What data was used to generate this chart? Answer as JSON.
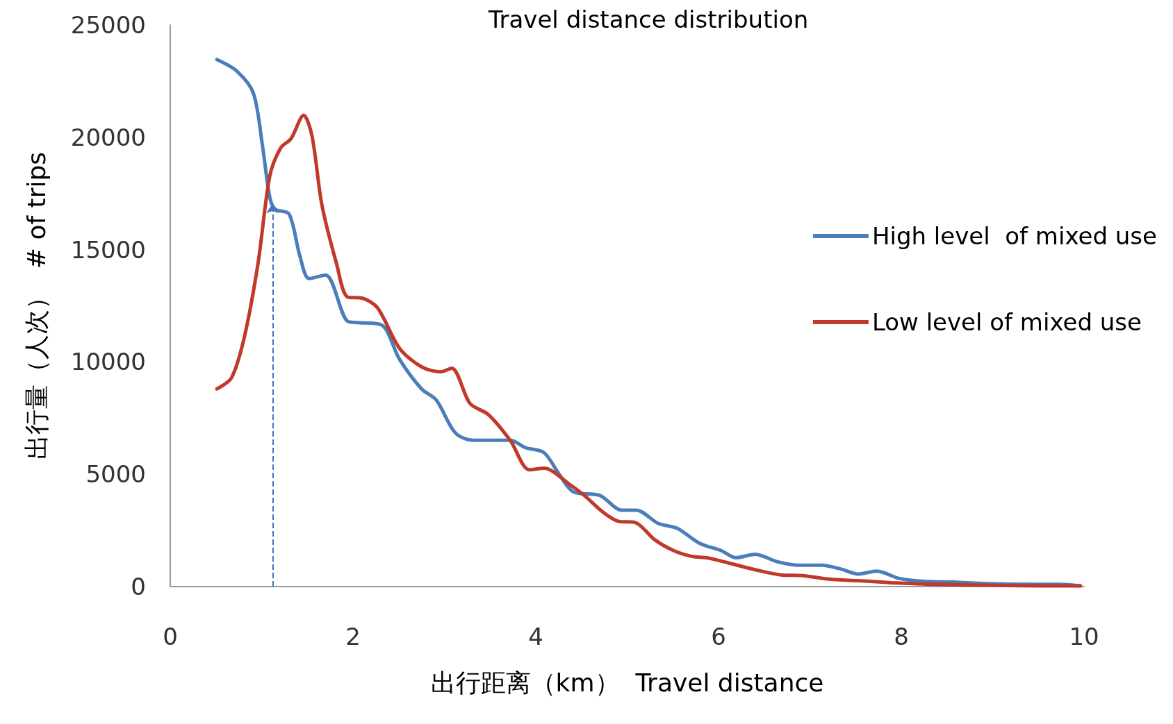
{
  "chart_data": {
    "type": "line",
    "title": "Travel distance distribution",
    "xlabel": "出行距离（km）  Travel distance",
    "ylabel": "出行量（人次）  # of trips",
    "xlim": [
      0,
      10
    ],
    "xticks": [
      0,
      2,
      4,
      6,
      8,
      10
    ],
    "ylim": [
      0,
      25000
    ],
    "yticks": [
      0,
      5000,
      10000,
      15000,
      20000,
      25000
    ],
    "grid": false,
    "legend": "right",
    "marker": "none",
    "line_style": "solid",
    "ref_lines": [
      {
        "axis": "x",
        "value": 1.12,
        "color": "#4472c4",
        "line_style": "dashed"
      }
    ],
    "series": [
      {
        "name": "High level  of mixed use",
        "color": "#4a7ebb",
        "x": [
          0.51,
          0.73,
          0.91,
          1.01,
          1.09,
          1.15,
          1.3,
          1.42,
          1.52,
          1.7,
          1.94,
          2.06,
          2.31,
          2.51,
          2.75,
          2.91,
          3.12,
          3.32,
          3.72,
          3.89,
          4.09,
          4.25,
          4.41,
          4.7,
          4.94,
          5.1,
          5.34,
          5.55,
          5.79,
          6.03,
          6.19,
          6.4,
          6.64,
          6.88,
          7.13,
          7.33,
          7.53,
          7.73,
          7.98,
          8.26,
          8.58,
          8.91,
          9.39,
          9.72,
          9.96
        ],
        "values": [
          23460,
          22940,
          21960,
          19600,
          17310,
          16790,
          16590,
          14690,
          13710,
          13870,
          11810,
          11750,
          11650,
          10110,
          8800,
          8310,
          6840,
          6510,
          6510,
          6180,
          5960,
          5040,
          4220,
          4060,
          3400,
          3400,
          2810,
          2590,
          1930,
          1600,
          1280,
          1440,
          1110,
          950,
          950,
          790,
          560,
          690,
          360,
          230,
          200,
          130,
          100,
          100,
          30
        ]
      },
      {
        "name": "Low level of mixed use",
        "color": "#c0392b",
        "x": [
          0.51,
          0.67,
          0.81,
          0.96,
          1.09,
          1.21,
          1.32,
          1.46,
          1.55,
          1.66,
          1.82,
          1.94,
          2.11,
          2.27,
          2.51,
          2.75,
          2.96,
          3.08,
          3.28,
          3.48,
          3.72,
          3.93,
          4.09,
          4.37,
          4.53,
          4.74,
          4.9,
          5.09,
          5.3,
          5.51,
          5.71,
          5.87,
          6.11,
          6.4,
          6.68,
          6.92,
          7.21,
          7.53,
          7.94,
          8.34,
          8.74,
          9.55,
          9.96
        ],
        "values": [
          8800,
          9290,
          11090,
          14370,
          18290,
          19540,
          19930,
          20980,
          20090,
          16980,
          14370,
          12890,
          12830,
          12400,
          10600,
          9780,
          9560,
          9720,
          8150,
          7660,
          6510,
          5200,
          5270,
          4550,
          4060,
          3300,
          2910,
          2850,
          2090,
          1600,
          1340,
          1280,
          1050,
          750,
          520,
          490,
          330,
          260,
          160,
          100,
          70,
          30,
          30
        ]
      }
    ]
  }
}
